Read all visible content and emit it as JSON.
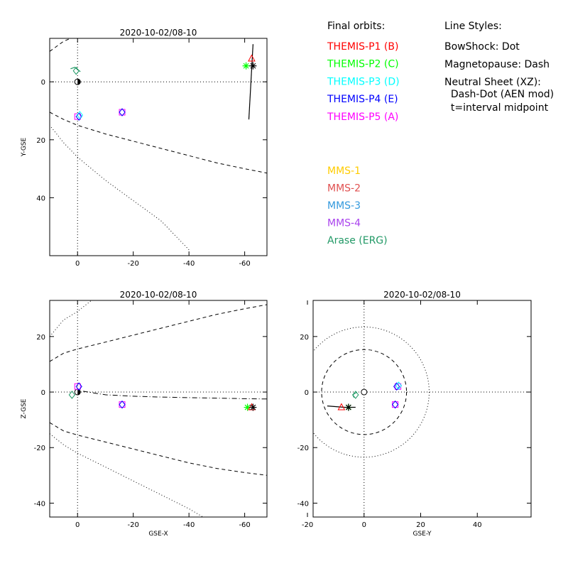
{
  "legend": {
    "orbits_title": "Final orbits:",
    "orbits": [
      {
        "label": "THEMIS-P1 (B)",
        "color": "#ff0000"
      },
      {
        "label": "THEMIS-P2 (C)",
        "color": "#00ff00"
      },
      {
        "label": "THEMIS-P3 (D)",
        "color": "#00ffff"
      },
      {
        "label": "THEMIS-P4 (E)",
        "color": "#0000ff"
      },
      {
        "label": "THEMIS-P5 (A)",
        "color": "#ff00ff"
      }
    ],
    "missions": [
      {
        "label": "MMS-1",
        "color": "#ffcc00"
      },
      {
        "label": "MMS-2",
        "color": "#e05050"
      },
      {
        "label": "MMS-3",
        "color": "#3399dd"
      },
      {
        "label": "MMS-4",
        "color": "#aa44ee"
      },
      {
        "label": "Arase (ERG)",
        "color": "#229966"
      }
    ],
    "styles_title": "Line Styles:",
    "styles": [
      "BowShock: Dot",
      "Magnetopause: Dash",
      "Neutral Sheet (XZ):",
      "  Dash-Dot (AEN mod)",
      "  t=interval midpoint"
    ]
  },
  "chart_data": [
    {
      "type": "scatter",
      "title": "2020-10-02/08-10",
      "xlabel": "",
      "ylabel": "Y-GSE",
      "xlim": [
        10,
        -68
      ],
      "ylim": [
        60,
        -15
      ],
      "xticks": [
        0,
        -20,
        -40,
        -60
      ],
      "yticks": [
        0,
        20,
        40
      ],
      "ref_lines": {
        "x": 0,
        "y": 0
      },
      "earth": "half",
      "bowshock": [
        [
          -40,
          58
        ],
        [
          -30,
          48
        ],
        [
          -20,
          41
        ],
        [
          -10,
          34
        ],
        [
          0,
          26
        ],
        [
          5,
          21
        ],
        [
          10,
          15
        ]
      ],
      "magnetopause_upper": [
        [
          10,
          -10.5
        ],
        [
          5,
          -14
        ],
        [
          0,
          -16
        ],
        [
          -5,
          -17
        ]
      ],
      "magnetopause_lower": [
        [
          10,
          10.5
        ],
        [
          5,
          13
        ],
        [
          0,
          15
        ],
        [
          -10,
          18
        ],
        [
          -20,
          20.5
        ],
        [
          -30,
          23
        ],
        [
          -40,
          25.5
        ],
        [
          -50,
          28
        ],
        [
          -60,
          30
        ],
        [
          -68,
          31.5
        ]
      ],
      "tracks": [
        {
          "points": [
            [
              -61.5,
              13
            ],
            [
              -63,
              -13
            ]
          ],
          "color": "#000000"
        },
        {
          "points": [
            [
              2.5,
              -4.5
            ],
            [
              1,
              -5
            ],
            [
              -1,
              -3.5
            ]
          ],
          "color": "#229966"
        }
      ],
      "markers": [
        {
          "x": -62.5,
          "y": -8,
          "shape": "triangle",
          "color": "#ff0000"
        },
        {
          "x": -60.5,
          "y": -5.5,
          "shape": "asterisk",
          "color": "#00ff00"
        },
        {
          "x": -63,
          "y": -5.5,
          "shape": "asterisk",
          "color": "#000000"
        },
        {
          "x": 0.5,
          "y": -3.8,
          "shape": "diamond",
          "color": "#229966"
        },
        {
          "x": 0,
          "y": 12,
          "shape": "square",
          "color": "#ff00ff"
        },
        {
          "x": -0.5,
          "y": 12,
          "shape": "diamond",
          "color": "#0000ff"
        },
        {
          "x": -0.8,
          "y": 11.5,
          "shape": "diamond",
          "color": "#00ffff"
        },
        {
          "x": -16,
          "y": 10.5,
          "shape": "square",
          "color": "#ff00ff"
        },
        {
          "x": -16,
          "y": 10.5,
          "shape": "diamond",
          "color": "#0000ff"
        }
      ]
    },
    {
      "type": "scatter",
      "title": "2020-10-02/08-10",
      "xlabel": "GSE-X",
      "ylabel": "Z-GSE",
      "xlim": [
        10,
        -68
      ],
      "ylim": [
        -45,
        33
      ],
      "xticks": [
        0,
        -20,
        -40,
        -60
      ],
      "yticks": [
        -40,
        -20,
        0,
        20
      ],
      "ref_lines": {
        "x": 0,
        "y": 0
      },
      "earth": "half",
      "bowshock_upper": [
        [
          10,
          20
        ],
        [
          5,
          26
        ],
        [
          0,
          29
        ],
        [
          -5,
          33
        ]
      ],
      "bowshock_lower": [
        [
          10,
          -15
        ],
        [
          5,
          -19
        ],
        [
          0,
          -22
        ],
        [
          -10,
          -27
        ],
        [
          -20,
          -32
        ],
        [
          -30,
          -37
        ],
        [
          -40,
          -42
        ],
        [
          -45,
          -45
        ]
      ],
      "magnetopause_upper": [
        [
          10,
          11
        ],
        [
          5,
          14
        ],
        [
          0,
          15.5
        ],
        [
          -10,
          18
        ],
        [
          -20,
          20.5
        ],
        [
          -30,
          23
        ],
        [
          -40,
          25.5
        ],
        [
          -50,
          28
        ],
        [
          -60,
          30
        ],
        [
          -68,
          31.5
        ]
      ],
      "magnetopause_lower": [
        [
          10,
          -11
        ],
        [
          5,
          -14
        ],
        [
          0,
          -15.5
        ],
        [
          -10,
          -18
        ],
        [
          -20,
          -20.5
        ],
        [
          -30,
          -23
        ],
        [
          -40,
          -25.5
        ],
        [
          -50,
          -27.5
        ],
        [
          -60,
          -29
        ],
        [
          -68,
          -30
        ]
      ],
      "neutral_sheet": [
        [
          -2,
          0.3
        ],
        [
          -10,
          -1
        ],
        [
          -20,
          -1.5
        ],
        [
          -30,
          -1.8
        ],
        [
          -40,
          -2
        ],
        [
          -50,
          -2.2
        ],
        [
          -60,
          -2.4
        ],
        [
          -68,
          -2.5
        ]
      ],
      "tracks": [],
      "markers": [
        {
          "x": 2,
          "y": -1,
          "shape": "diamond",
          "color": "#229966"
        },
        {
          "x": 0,
          "y": 2,
          "shape": "square",
          "color": "#ff00ff"
        },
        {
          "x": -0.5,
          "y": 2,
          "shape": "diamond",
          "color": "#0000ff"
        },
        {
          "x": -16,
          "y": -4.5,
          "shape": "square",
          "color": "#ff00ff"
        },
        {
          "x": -16,
          "y": -4.5,
          "shape": "diamond",
          "color": "#0000ff"
        },
        {
          "x": -61,
          "y": -5.5,
          "shape": "asterisk",
          "color": "#00ff00"
        },
        {
          "x": -62.5,
          "y": -5.5,
          "shape": "triangle",
          "color": "#ff0000"
        },
        {
          "x": -63,
          "y": -5.5,
          "shape": "asterisk",
          "color": "#000000"
        }
      ]
    },
    {
      "type": "scatter",
      "title": "2020-10-02/08-10",
      "xlabel": "GSE-Y",
      "ylabel": "",
      "xlim": [
        -18,
        59
      ],
      "ylim": [
        -45,
        33
      ],
      "xticks": [
        -20,
        0,
        20,
        40
      ],
      "yticks": [
        -40,
        -20,
        0,
        20
      ],
      "ref_lines": {
        "x": 0,
        "y": 0
      },
      "earth": "open",
      "circles": [
        {
          "cx": 0,
          "cy": 0,
          "r": 23,
          "style": "dot"
        },
        {
          "cx": 0,
          "cy": 0,
          "r": 15,
          "style": "dash"
        }
      ],
      "tracks": [
        {
          "points": [
            [
              -13,
              -5
            ],
            [
              -7,
              -5.5
            ],
            [
              -3,
              -5.5
            ]
          ],
          "color": "#000000"
        },
        {
          "points": [
            [
              -3.5,
              -2
            ],
            [
              -4,
              -1
            ],
            [
              -2.5,
              0
            ]
          ],
          "color": "#229966"
        }
      ],
      "markers": [
        {
          "x": -3,
          "y": -1,
          "shape": "diamond",
          "color": "#229966"
        },
        {
          "x": 12,
          "y": 2,
          "shape": "square",
          "color": "#ff00ff"
        },
        {
          "x": 11.5,
          "y": 2,
          "shape": "diamond",
          "color": "#0000ff"
        },
        {
          "x": 12.2,
          "y": 2.3,
          "shape": "diamond",
          "color": "#00ffff"
        },
        {
          "x": 11,
          "y": -4.5,
          "shape": "square",
          "color": "#ff00ff"
        },
        {
          "x": 11,
          "y": -4.5,
          "shape": "diamond",
          "color": "#0000ff"
        },
        {
          "x": -8,
          "y": -5.5,
          "shape": "triangle",
          "color": "#ff0000"
        },
        {
          "x": -5.5,
          "y": -5.5,
          "shape": "asterisk",
          "color": "#00ff00"
        },
        {
          "x": -5.5,
          "y": -5.5,
          "shape": "asterisk",
          "color": "#000000"
        }
      ]
    }
  ]
}
